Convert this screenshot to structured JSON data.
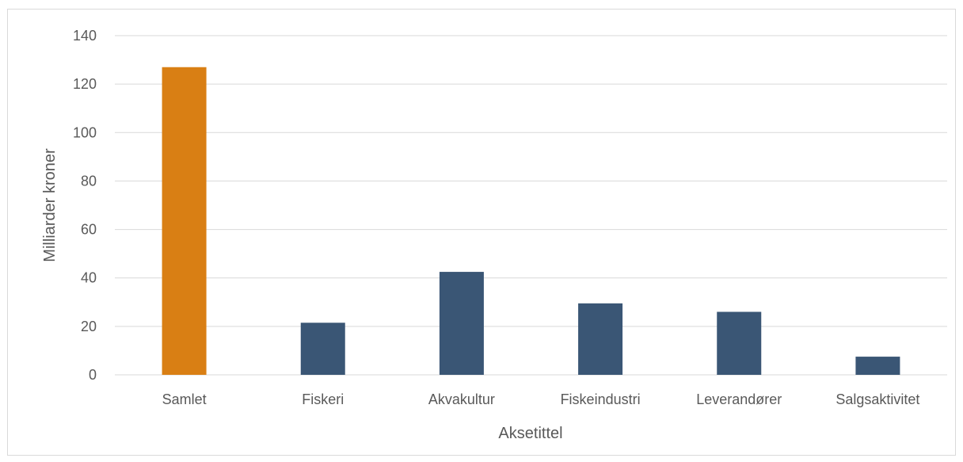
{
  "chart_data": {
    "type": "bar",
    "title": "",
    "xlabel": "Aksetittel",
    "ylabel": "Milliarder kroner",
    "categories": [
      "Samlet",
      "Fiskeri",
      "Akvakultur",
      "Fiskeindustri",
      "Leverandører",
      "Salgsaktivitet"
    ],
    "values": [
      127,
      21.5,
      42.5,
      29.5,
      26,
      7.5
    ],
    "bar_colors": [
      "#d97f14",
      "#3a5675",
      "#3a5675",
      "#3a5675",
      "#3a5675",
      "#3a5675"
    ],
    "ylim": [
      0,
      140
    ],
    "yticks": [
      "0",
      "20",
      "40",
      "60",
      "80",
      "100",
      "120",
      "140"
    ],
    "grid": true,
    "legend": "none"
  },
  "colors": {
    "highlight": "#d97f14",
    "bar": "#3a5675",
    "grid": "#d9d9d9",
    "text": "#595959"
  }
}
